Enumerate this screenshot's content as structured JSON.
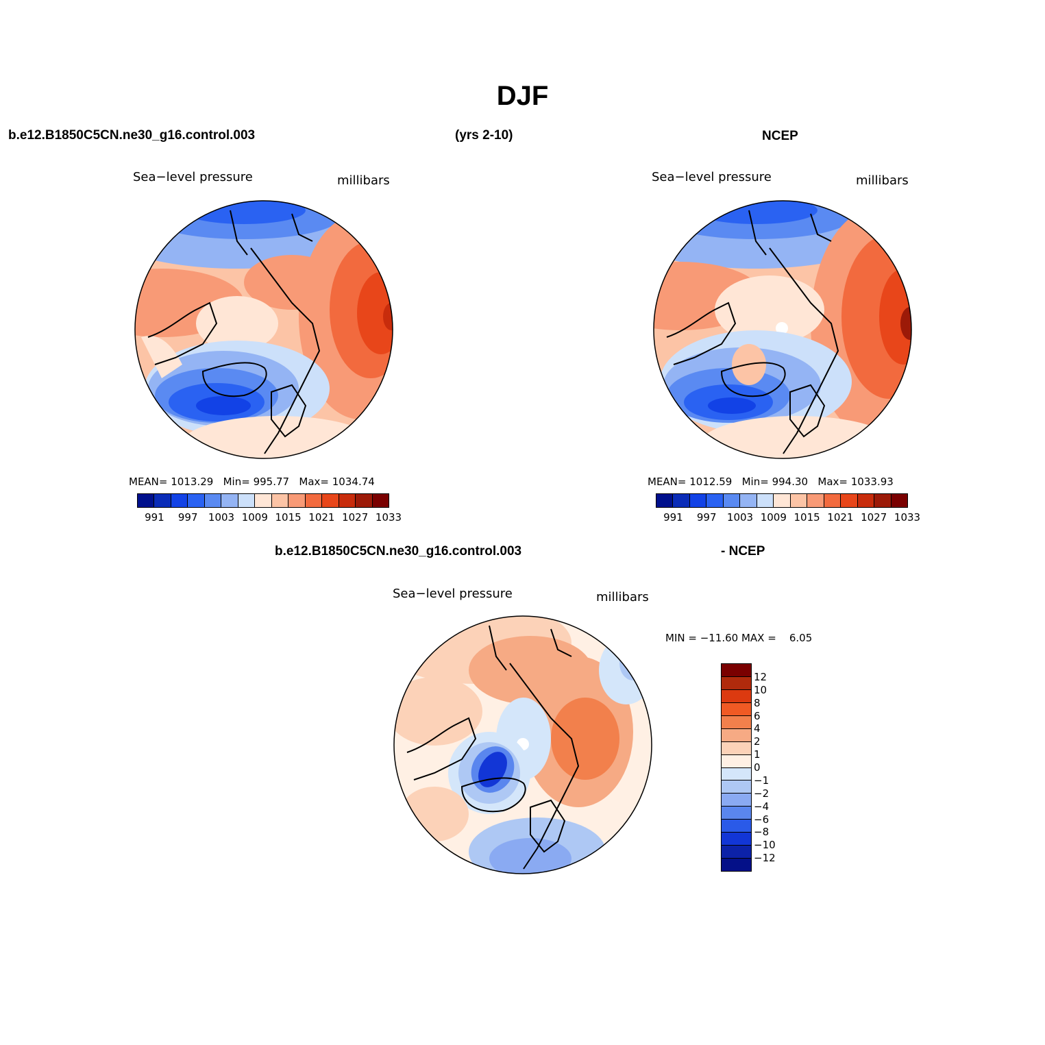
{
  "title": "DJF",
  "header": {
    "case_name": "b.e12.B1850C5CN.ne30_g16.control.003",
    "years": "(yrs 2-10)",
    "obs_name": "NCEP"
  },
  "panels": [
    {
      "id": "model",
      "title": "Sea−level pressure",
      "units": "millibars",
      "stats": {
        "mean_label": "MEAN=",
        "mean": "1013.29",
        "min_label": "Min=",
        "min": "995.77",
        "max_label": "Max=",
        "max": "1034.74"
      }
    },
    {
      "id": "obs",
      "title": "Sea−level pressure",
      "units": "millibars",
      "stats": {
        "mean_label": "MEAN=",
        "mean": "1012.59",
        "min_label": "Min=",
        "min": "994.30",
        "max_label": "Max=",
        "max": "1033.93"
      }
    },
    {
      "id": "diff",
      "case_label": "b.e12.B1850C5CN.ne30_g16.control.003",
      "minus_label": "- NCEP",
      "title": "Sea−level pressure",
      "units": "millibars",
      "stats_text": "MIN = −11.60 MAX =    6.05"
    }
  ],
  "colorbar_abs": {
    "colors": [
      "#00108c",
      "#0a2cb8",
      "#1242e6",
      "#2a62f2",
      "#5a8af2",
      "#94b4f4",
      "#cce0fa",
      "#ffe6d6",
      "#fcc4a6",
      "#f89a76",
      "#f26a3e",
      "#e8461a",
      "#c82c0c",
      "#9c1a08",
      "#7a0000"
    ],
    "labels": [
      "991",
      "997",
      "1003",
      "1009",
      "1015",
      "1021",
      "1027",
      "1033"
    ]
  },
  "colorbar_diff": {
    "colors": [
      "#7a0000",
      "#b02a0c",
      "#dc3a10",
      "#f05a24",
      "#f2804c",
      "#f6aa84",
      "#fcd2b8",
      "#fff0e4",
      "#d4e6fa",
      "#aec8f4",
      "#8aaaf2",
      "#5a86ee",
      "#2a5ae8",
      "#1236d6",
      "#0c22a8",
      "#041088"
    ],
    "labels": [
      "12",
      "10",
      "8",
      "6",
      "4",
      "2",
      "1",
      "0",
      "−1",
      "−2",
      "−4",
      "−6",
      "−8",
      "−10",
      "−12"
    ]
  }
}
